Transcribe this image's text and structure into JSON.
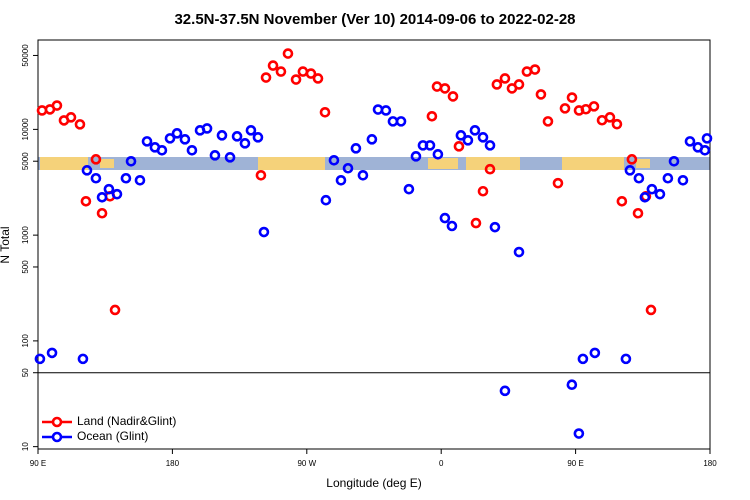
{
  "chart_data": {
    "type": "scatter",
    "title": "32.5N-37.5N November (Ver 10)   2014-09-06 to 2022-02-28",
    "x_label": "Longitude (deg E)",
    "y_label": "N Total",
    "log_y": true,
    "xlim": [
      90,
      540
    ],
    "ylim": [
      9.5,
      70000
    ],
    "xticks": [
      {
        "value": 90,
        "label": "90 E"
      },
      180,
      {
        "value": 270,
        "label": "90 W"
      },
      {
        "value": 360,
        "label": "0"
      },
      {
        "value": 450,
        "label": "90 E"
      },
      {
        "value": 540,
        "label": "180"
      }
    ],
    "yticks": [
      10,
      50,
      100,
      500,
      1000,
      5000,
      10000,
      50000
    ],
    "hline": 50,
    "legend": "bottom-left",
    "series": [
      {
        "name": "Land (Nadir&Glint)",
        "color": "#ff0000",
        "x": [
          92.7,
          98.0,
          102.7,
          107.4,
          112.1,
          118.1,
          122.1,
          128.8,
          132.9,
          138.2,
          141.6,
          239.3,
          242.7,
          247.4,
          252.7,
          257.4,
          262.8,
          267.4,
          272.8,
          277.5,
          282.2,
          353.8,
          357.2,
          362.5,
          367.9,
          371.9,
          383.3,
          388,
          392.7,
          397.3,
          402.7,
          407.4,
          412.1,
          417.4,
          422.8,
          426.8,
          431.5,
          438.2,
          442.9,
          447.6,
          452.3,
          456.9,
          462.3,
          467.7,
          473,
          477.7,
          481,
          487.7,
          491.8,
          497.1,
          500.5
        ],
        "values": [
          15100,
          15450,
          16800,
          12160,
          13000,
          11150,
          2090,
          5210,
          1610,
          2330,
          196,
          3680,
          30900,
          40100,
          35200,
          52100,
          29600,
          35200,
          33700,
          30300,
          14500,
          13300,
          25400,
          24400,
          20500,
          6910,
          1300,
          2600,
          4200,
          26600,
          30300,
          24400,
          26600,
          35200,
          36800,
          21400,
          11900,
          3100,
          15800,
          20000,
          15100,
          15500,
          16500,
          12200,
          13000,
          11200,
          2090,
          5210,
          1610,
          2330,
          196
        ]
      },
      {
        "name": "Ocean (Glint)",
        "color": "#0000ff",
        "x": [
          91.3,
          99.4,
          120.1,
          122.8,
          128.8,
          132.9,
          137.5,
          142.9,
          148.9,
          152.3,
          158.3,
          163,
          168.3,
          173,
          178.4,
          183.1,
          188.4,
          193.1,
          198.5,
          203.2,
          208.5,
          213.2,
          218.6,
          223.3,
          228.6,
          232.6,
          237.3,
          241.3,
          282.8,
          288.2,
          292.9,
          297.6,
          302.9,
          307.6,
          313.6,
          317.7,
          323,
          327.7,
          333.1,
          338.4,
          343.1,
          347.8,
          352.5,
          357.8,
          362.5,
          367.2,
          373.2,
          377.9,
          382.6,
          388,
          392.7,
          396,
          402.7,
          412.1,
          447.5,
          452.2,
          454.9,
          462.9,
          483.7,
          486.4,
          492.4,
          496.4,
          501.1,
          506.5,
          511.8,
          515.9,
          521.9,
          526.6,
          531.9,
          536.6,
          538
        ],
        "values": [
          67.6,
          77,
          67.6,
          4100,
          3450,
          2280,
          2720,
          2440,
          3450,
          4990,
          3300,
          7700,
          6760,
          6340,
          8220,
          9170,
          8050,
          6340,
          9790,
          10200,
          5680,
          8780,
          5440,
          8590,
          7380,
          9790,
          8410,
          1070,
          2140,
          5100,
          3300,
          4290,
          6620,
          3680,
          8050,
          15400,
          15100,
          11900,
          11900,
          2720,
          5560,
          7060,
          7060,
          5810,
          1450,
          1220,
          8780,
          7880,
          9790,
          8410,
          7060,
          1190,
          33.7,
          692,
          38.5,
          13.3,
          67.6,
          77,
          67.6,
          4100,
          3450,
          2280,
          2720,
          2440,
          3450,
          4990,
          3300,
          7700,
          6760,
          6340,
          8220
        ]
      }
    ]
  }
}
